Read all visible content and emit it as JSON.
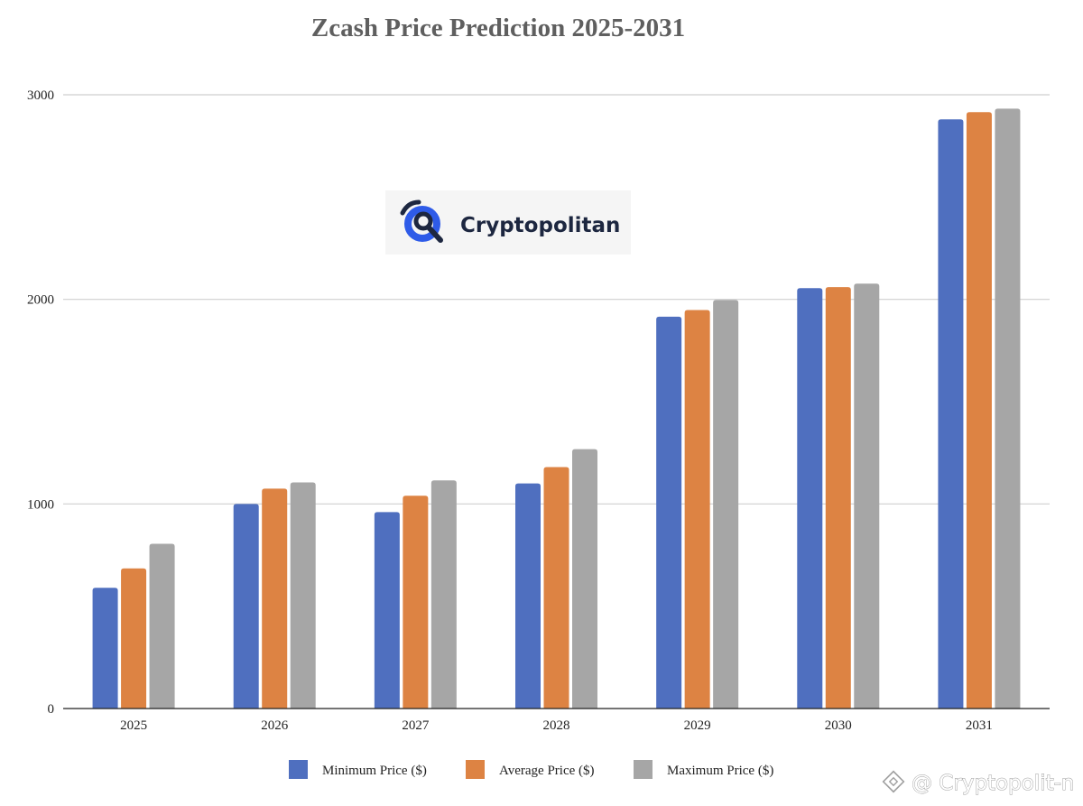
{
  "chart_data": {
    "type": "bar",
    "title": "Zcash Price Prediction 2025-2031",
    "xlabel": "",
    "ylabel": "",
    "categories": [
      "2025",
      "2026",
      "2027",
      "2028",
      "2029",
      "2030",
      "2031"
    ],
    "series": [
      {
        "name": "Minimum Price ($)",
        "color": "#4f6fbf",
        "values": [
          590,
          1000,
          960,
          1100,
          1915,
          2055,
          2880
        ]
      },
      {
        "name": "Average Price ($)",
        "color": "#dd8343",
        "values": [
          685,
          1075,
          1040,
          1180,
          1948,
          2060,
          2915
        ]
      },
      {
        "name": "Maximum Price ($)",
        "color": "#a6a6a6",
        "values": [
          805,
          1105,
          1115,
          1268,
          1997,
          2077,
          2932
        ]
      }
    ],
    "ylim": [
      0,
      3000
    ],
    "yticks": [
      0,
      1000,
      2000,
      3000
    ],
    "ytick_labels": [
      "0",
      "1000",
      "2000",
      "3000"
    ],
    "grid": true,
    "legend": "bottom-center"
  },
  "logo": {
    "text": "Cryptopolitan",
    "icon": "cryptopolitan-logo-icon"
  },
  "watermark": {
    "text": "@ Cryptopolit-n",
    "icon": "binance-logo-icon"
  }
}
